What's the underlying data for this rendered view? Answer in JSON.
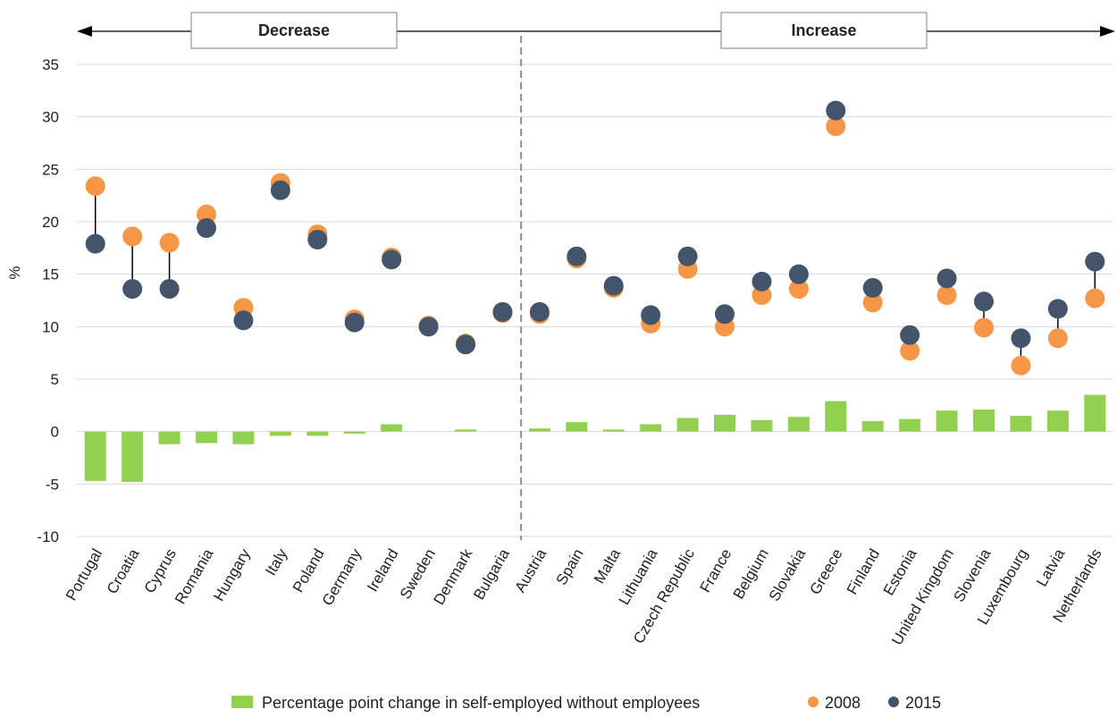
{
  "chart_data": {
    "type": "bar",
    "ylabel": "%",
    "ylim": [
      -10,
      35
    ],
    "yticks": [
      -10,
      -5,
      0,
      5,
      10,
      15,
      20,
      25,
      30,
      35
    ],
    "grid": true,
    "legend_position": "bottom",
    "sections": [
      {
        "label": "Decrease",
        "direction": "left"
      },
      {
        "label": "Increase",
        "direction": "right"
      }
    ],
    "categories": [
      "Portugal",
      "Croatia",
      "Cyprus",
      "Romania",
      "Hungary",
      "Italy",
      "Poland",
      "Germany",
      "Ireland",
      "Sweden",
      "Denmark",
      "Bulgaria",
      "Austria",
      "Spain",
      "Malta",
      "Lithuania",
      "Czech Republic",
      "France",
      "Belgium",
      "Slovakia",
      "Greece",
      "Finland",
      "Estonia",
      "United Kingdom",
      "Slovenia",
      "Luxembourg",
      "Latvia",
      "Netherlands"
    ],
    "series": [
      {
        "name": "Percentage point change in self-employed without employees",
        "kind": "bar",
        "color": "#92d050",
        "values": [
          -4.7,
          -4.8,
          -1.2,
          -1.1,
          -1.2,
          -0.4,
          -0.4,
          -0.2,
          0.7,
          0.0,
          0.2,
          0.0,
          0.3,
          0.9,
          0.2,
          0.7,
          1.3,
          1.6,
          1.1,
          1.4,
          2.9,
          1.0,
          1.2,
          2.0,
          2.1,
          1.5,
          2.0,
          3.5
        ]
      },
      {
        "name": "2008",
        "kind": "dot",
        "color": "#f79646",
        "values": [
          23.4,
          18.6,
          18.0,
          20.7,
          11.8,
          23.7,
          18.8,
          10.7,
          16.6,
          10.1,
          8.4,
          11.3,
          11.2,
          16.5,
          13.7,
          10.3,
          15.5,
          10.0,
          13.0,
          13.6,
          29.1,
          12.3,
          7.7,
          13.0,
          9.9,
          6.3,
          8.9,
          12.7
        ]
      },
      {
        "name": "2015",
        "kind": "dot",
        "color": "#44546a",
        "values": [
          17.9,
          13.6,
          13.6,
          19.4,
          10.6,
          23.0,
          18.3,
          10.4,
          16.4,
          10.0,
          8.3,
          11.4,
          11.4,
          16.7,
          13.9,
          11.1,
          16.7,
          11.2,
          14.3,
          15.0,
          30.6,
          13.7,
          9.2,
          14.6,
          12.4,
          8.9,
          11.7,
          16.2
        ]
      }
    ],
    "legend": [
      {
        "label": "Percentage point change in self-employed without employees",
        "shape": "square",
        "color": "#92d050"
      },
      {
        "label": "2008",
        "shape": "circle",
        "color": "#f79646"
      },
      {
        "label": "2015",
        "shape": "circle",
        "color": "#44546a"
      }
    ]
  }
}
